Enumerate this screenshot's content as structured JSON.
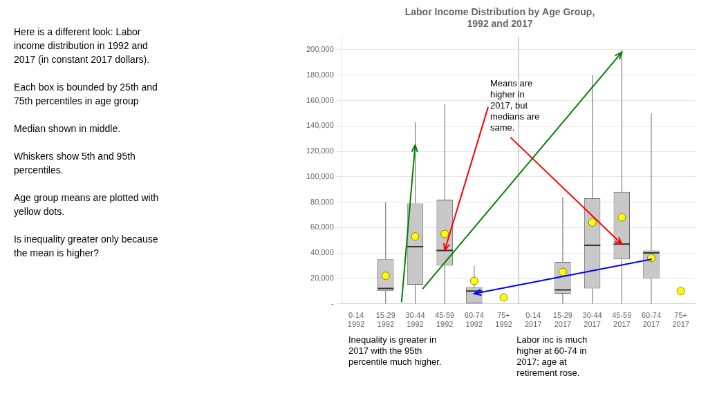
{
  "chart_data": {
    "type": "box",
    "title": "Labor Income Distribution by Age Group,\n1992 and 2017",
    "categories": [
      "0-14\n1992",
      "15-29\n1992",
      "30-44\n1992",
      "45-59\n1992",
      "60-74\n1992",
      "75+\n1992",
      "0-14\n2017",
      "15-29\n2017",
      "30-44\n2017",
      "45-59\n2017",
      "60-74\n2017",
      "75+\n2017"
    ],
    "series": [
      {
        "type": "box",
        "color": "#c8c8c8",
        "p5": [
          null,
          0,
          0,
          0,
          0,
          null,
          null,
          0,
          0,
          0,
          0,
          null
        ],
        "p25": [
          null,
          10000,
          15000,
          30000,
          0,
          null,
          null,
          8000,
          12000,
          35000,
          20000,
          null
        ],
        "median": [
          null,
          12000,
          45000,
          42000,
          10000,
          null,
          null,
          11000,
          46000,
          47000,
          40000,
          null
        ],
        "p75": [
          null,
          35000,
          79000,
          82000,
          13000,
          null,
          null,
          33000,
          83000,
          88000,
          42000,
          null
        ],
        "p95": [
          null,
          80000,
          143000,
          157000,
          30000,
          null,
          null,
          84000,
          180000,
          200000,
          150000,
          null
        ]
      },
      {
        "type": "scatter",
        "color": "#ffff00",
        "values": [
          null,
          22000,
          53000,
          55000,
          18000,
          5000,
          null,
          25000,
          64000,
          68000,
          36000,
          10000
        ]
      }
    ],
    "ylim": [
      0,
      210000
    ],
    "yticks": [
      {
        "value": 0,
        "label": "-"
      },
      {
        "value": 20000,
        "label": "20,000"
      },
      {
        "value": 40000,
        "label": "40,000"
      },
      {
        "value": 60000,
        "label": "60,000"
      },
      {
        "value": 80000,
        "label": "80,000"
      },
      {
        "value": 100000,
        "label": "100,000"
      },
      {
        "value": 120000,
        "label": "120,000"
      },
      {
        "value": 140000,
        "label": "140,000"
      },
      {
        "value": 160000,
        "label": "160,000"
      },
      {
        "value": 180000,
        "label": "180,000"
      },
      {
        "value": 200000,
        "label": "200,000"
      }
    ],
    "grid": true,
    "annotations": [
      {
        "text": "Here is a different look: Labor\nincome distribution in 1992 and\n2017 (in constant 2017 dollars).\n\nEach box is bounded by 25th and\n75th percentiles in age group\n\nMedian shown in middle.\n\nWhiskers show 5th and 95th\npercentiles.\n\nAge group means are plotted with\nyellow dots.\n\nIs inequality greater only because\nthe mean is higher?"
      },
      {
        "text": "Means are\nhigher in\n2017, but\nmedians are\nsame.",
        "color": "red",
        "arrows": [
          {
            "to": {
              "category": "45-59\n1992",
              "value": 42000
            }
          },
          {
            "to": {
              "category": "45-59\n2017",
              "value": 47000
            }
          }
        ]
      },
      {
        "text": "Inequality is greater in\n2017 with the 95th\npercentile much higher.",
        "color": "green",
        "arrows": [
          {
            "to": {
              "category": "30-44\n1992",
              "value": 125000
            }
          },
          {
            "to": {
              "category": "45-59\n2017",
              "value": 198000
            }
          }
        ]
      },
      {
        "text": "Labor inc is much\nhigher at 60-74 in\n2017; age at\nretirement rose.",
        "color": "blue",
        "arrows": [
          {
            "from": {
              "category": "60-74\n2017",
              "value": 35000
            },
            "to": {
              "category": "60-74\n1992",
              "value": 8000
            }
          }
        ]
      }
    ]
  }
}
